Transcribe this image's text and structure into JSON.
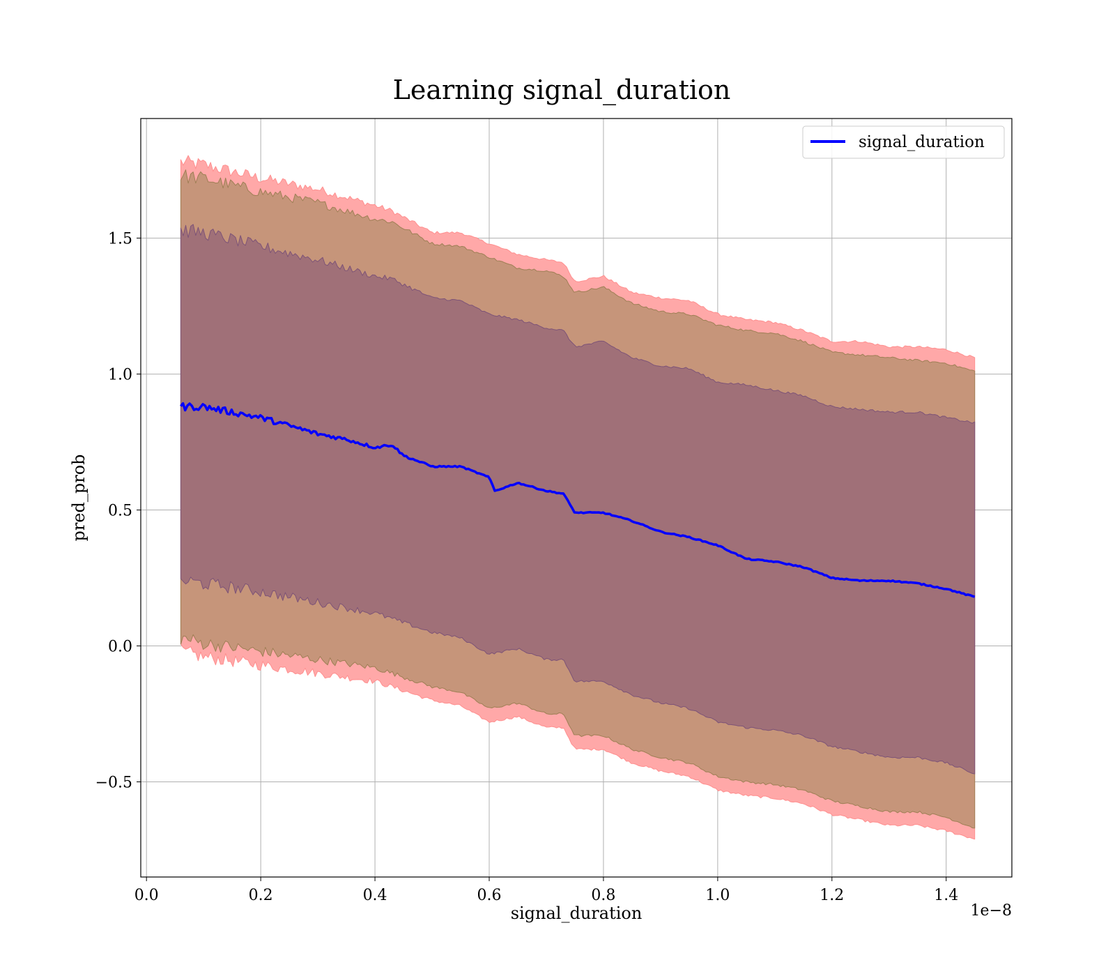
{
  "chart_data": {
    "type": "area",
    "title": "Learning signal_duration",
    "xlabel": "signal_duration",
    "ylabel": "pred_prob",
    "x_offset_label": "1e−8",
    "xlim": [
      -0.01,
      1.515
    ],
    "ylim": [
      -0.85,
      1.94
    ],
    "xticks": [
      0.0,
      0.2,
      0.4,
      0.6,
      0.8,
      1.0,
      1.2,
      1.4
    ],
    "xtick_labels": [
      "0.0",
      "0.2",
      "0.4",
      "0.6",
      "0.8",
      "1.0",
      "1.2",
      "1.4"
    ],
    "yticks": [
      -0.5,
      0.0,
      0.5,
      1.0,
      1.5
    ],
    "ytick_labels": [
      "−0.5",
      "0.0",
      "0.5",
      "1.0",
      "1.5"
    ],
    "grid": true,
    "legend_position": "top-right",
    "colors": {
      "line": "#0000ff",
      "band_outer": "#ffa8a8",
      "band_middle": "#c6957a",
      "band_inner": "#a07078",
      "edge_outer": "#ff8f8f",
      "edge_middle": "#9e7f55",
      "edge_inner": "#7d5377"
    },
    "series": [
      {
        "name": "signal_duration",
        "x": [
          0.06,
          0.1,
          0.15,
          0.2,
          0.25,
          0.3,
          0.35,
          0.4,
          0.43,
          0.45,
          0.5,
          0.55,
          0.6,
          0.61,
          0.65,
          0.7,
          0.73,
          0.75,
          0.8,
          0.85,
          0.9,
          0.95,
          1.0,
          1.05,
          1.1,
          1.15,
          1.2,
          1.25,
          1.3,
          1.35,
          1.4,
          1.45
        ],
        "y": [
          0.88,
          0.88,
          0.86,
          0.84,
          0.81,
          0.78,
          0.76,
          0.73,
          0.74,
          0.7,
          0.66,
          0.66,
          0.62,
          0.57,
          0.6,
          0.57,
          0.56,
          0.49,
          0.49,
          0.46,
          0.42,
          0.4,
          0.37,
          0.32,
          0.31,
          0.29,
          0.25,
          0.24,
          0.24,
          0.23,
          0.21,
          0.18
        ]
      }
    ],
    "bands": [
      {
        "level": "outer",
        "x": [
          0.06,
          0.1,
          0.2,
          0.3,
          0.4,
          0.43,
          0.5,
          0.55,
          0.6,
          0.65,
          0.7,
          0.73,
          0.75,
          0.8,
          0.85,
          0.9,
          0.95,
          1.0,
          1.05,
          1.1,
          1.15,
          1.2,
          1.25,
          1.3,
          1.35,
          1.4,
          1.45
        ],
        "upper": [
          1.78,
          1.77,
          1.72,
          1.68,
          1.62,
          1.6,
          1.52,
          1.52,
          1.48,
          1.44,
          1.42,
          1.41,
          1.34,
          1.36,
          1.3,
          1.28,
          1.27,
          1.22,
          1.2,
          1.19,
          1.16,
          1.12,
          1.12,
          1.1,
          1.1,
          1.09,
          1.06
        ],
        "lower": [
          -0.02,
          -0.04,
          -0.07,
          -0.1,
          -0.13,
          -0.15,
          -0.2,
          -0.22,
          -0.28,
          -0.26,
          -0.3,
          -0.3,
          -0.38,
          -0.38,
          -0.43,
          -0.46,
          -0.48,
          -0.53,
          -0.55,
          -0.56,
          -0.58,
          -0.62,
          -0.64,
          -0.66,
          -0.66,
          -0.68,
          -0.71
        ]
      },
      {
        "level": "middle",
        "x": [
          0.06,
          0.1,
          0.2,
          0.3,
          0.4,
          0.43,
          0.5,
          0.55,
          0.6,
          0.65,
          0.7,
          0.73,
          0.75,
          0.8,
          0.85,
          0.9,
          0.95,
          1.0,
          1.05,
          1.1,
          1.15,
          1.2,
          1.25,
          1.3,
          1.35,
          1.4,
          1.45
        ],
        "upper": [
          1.73,
          1.72,
          1.67,
          1.63,
          1.57,
          1.56,
          1.48,
          1.47,
          1.43,
          1.39,
          1.38,
          1.36,
          1.3,
          1.32,
          1.26,
          1.23,
          1.22,
          1.18,
          1.16,
          1.15,
          1.12,
          1.08,
          1.07,
          1.06,
          1.05,
          1.04,
          1.01
        ],
        "lower": [
          0.03,
          0.01,
          -0.02,
          -0.05,
          -0.08,
          -0.1,
          -0.15,
          -0.17,
          -0.23,
          -0.21,
          -0.25,
          -0.25,
          -0.33,
          -0.33,
          -0.38,
          -0.41,
          -0.43,
          -0.48,
          -0.5,
          -0.51,
          -0.53,
          -0.57,
          -0.59,
          -0.61,
          -0.61,
          -0.63,
          -0.67
        ]
      },
      {
        "level": "inner",
        "x": [
          0.06,
          0.1,
          0.2,
          0.3,
          0.4,
          0.43,
          0.5,
          0.55,
          0.6,
          0.65,
          0.7,
          0.73,
          0.75,
          0.8,
          0.85,
          0.9,
          0.95,
          1.0,
          1.05,
          1.1,
          1.15,
          1.2,
          1.25,
          1.3,
          1.35,
          1.4,
          1.45
        ],
        "upper": [
          1.53,
          1.52,
          1.47,
          1.42,
          1.36,
          1.35,
          1.28,
          1.27,
          1.22,
          1.2,
          1.17,
          1.16,
          1.1,
          1.12,
          1.06,
          1.03,
          1.02,
          0.97,
          0.96,
          0.94,
          0.92,
          0.88,
          0.87,
          0.86,
          0.86,
          0.84,
          0.82
        ],
        "lower": [
          0.24,
          0.23,
          0.2,
          0.16,
          0.12,
          0.1,
          0.05,
          0.03,
          -0.03,
          -0.01,
          -0.05,
          -0.05,
          -0.13,
          -0.13,
          -0.18,
          -0.21,
          -0.23,
          -0.28,
          -0.3,
          -0.31,
          -0.33,
          -0.37,
          -0.39,
          -0.41,
          -0.41,
          -0.43,
          -0.47
        ]
      }
    ]
  }
}
